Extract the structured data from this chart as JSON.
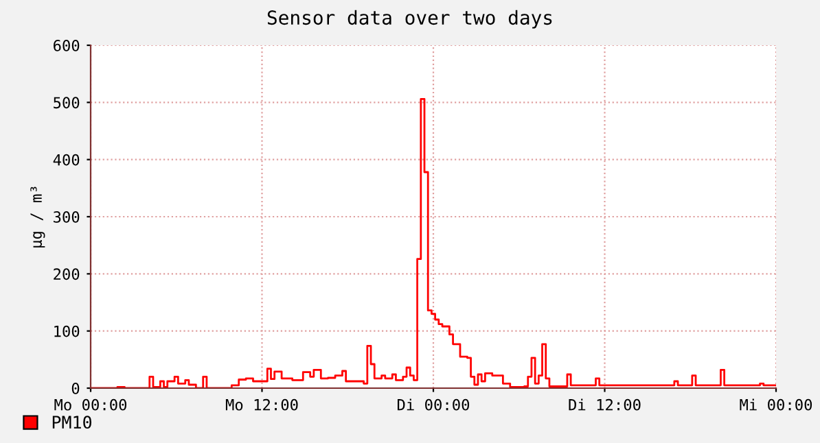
{
  "chart_data": {
    "type": "step",
    "title": "Sensor data over two days",
    "ylabel": "µg / m³",
    "categories": [
      "Mo 00:00",
      null,
      null,
      null,
      null,
      null,
      null,
      null,
      null,
      null,
      null,
      null,
      null,
      null,
      null,
      null,
      null,
      null,
      null,
      null,
      null,
      null,
      null,
      null,
      null,
      null,
      null,
      null,
      null,
      null,
      null,
      null,
      null,
      null,
      null,
      null,
      null,
      null,
      null,
      null,
      null,
      null,
      null,
      null,
      null,
      null,
      null,
      null,
      "Mo 12:00",
      null,
      null,
      null,
      null,
      null,
      null,
      null,
      null,
      null,
      null,
      null,
      null,
      null,
      null,
      null,
      null,
      null,
      null,
      null,
      null,
      null,
      null,
      null,
      null,
      null,
      null,
      null,
      null,
      null,
      null,
      null,
      null,
      null,
      null,
      null,
      null,
      null,
      null,
      null,
      null,
      null,
      null,
      null,
      null,
      null,
      null,
      null,
      "Di 00:00",
      null,
      null,
      null,
      null,
      null,
      null,
      null,
      null,
      null,
      null,
      null,
      null,
      null,
      null,
      null,
      null,
      null,
      null,
      null,
      null,
      null,
      null,
      null,
      null,
      null,
      null,
      null,
      null,
      null,
      null,
      null,
      null,
      null,
      null,
      null,
      null,
      null,
      null,
      null,
      null,
      null,
      null,
      null,
      null,
      null,
      null,
      null,
      "Di 12:00",
      null,
      null,
      null,
      null,
      null,
      null,
      null,
      null,
      null,
      null,
      null,
      null,
      null,
      null,
      null,
      null,
      null,
      null,
      null,
      null,
      null,
      null,
      null,
      null,
      null,
      null,
      null,
      null,
      null,
      null,
      null,
      null,
      null,
      null,
      null,
      null,
      null,
      null,
      null,
      null,
      null,
      null,
      null,
      null,
      null,
      null,
      null,
      "Mi 00:00"
    ],
    "series": [
      {
        "name": "PM10",
        "color": "#ff0000",
        "values": [
          0,
          0,
          0,
          0,
          0,
          0,
          0,
          0,
          2,
          2,
          0,
          0,
          0,
          0,
          0,
          0,
          0,
          20,
          2,
          2,
          12,
          2,
          12,
          12,
          20,
          8,
          8,
          14,
          6,
          6,
          0,
          0,
          20,
          0,
          0,
          0,
          0,
          0,
          0,
          0,
          5,
          5,
          15,
          15,
          17,
          17,
          12,
          12,
          12,
          12,
          34,
          16,
          29,
          29,
          17,
          17,
          17,
          14,
          14,
          14,
          28,
          28,
          20,
          32,
          32,
          17,
          17,
          18,
          18,
          22,
          22,
          30,
          12,
          12,
          12,
          12,
          12,
          8,
          74,
          42,
          17,
          17,
          22,
          17,
          17,
          24,
          14,
          14,
          20,
          36,
          22,
          14,
          226,
          506,
          378,
          136,
          130,
          120,
          112,
          108,
          108,
          94,
          77,
          77,
          55,
          55,
          53,
          20,
          6,
          24,
          12,
          26,
          26,
          22,
          22,
          22,
          8,
          8,
          2,
          2,
          2,
          2,
          3,
          20,
          53,
          8,
          22,
          77,
          17,
          3,
          3,
          3,
          3,
          3,
          24,
          5,
          5,
          5,
          5,
          5,
          5,
          5,
          17,
          5,
          5,
          5,
          5,
          5,
          5,
          5,
          5,
          5,
          5,
          5,
          5,
          5,
          5,
          5,
          5,
          5,
          5,
          5,
          5,
          5,
          12,
          5,
          5,
          5,
          5,
          22,
          5,
          5,
          5,
          5,
          5,
          5,
          5,
          32,
          5,
          5,
          5,
          5,
          5,
          5,
          5,
          5,
          5,
          5,
          8,
          5,
          5,
          5,
          5
        ]
      }
    ],
    "ylim": [
      0,
      600
    ],
    "yticks": [
      0,
      100,
      200,
      300,
      400,
      500,
      600
    ],
    "grid": true,
    "legend": "bottom left",
    "line_style": "solid",
    "marker": "none"
  }
}
